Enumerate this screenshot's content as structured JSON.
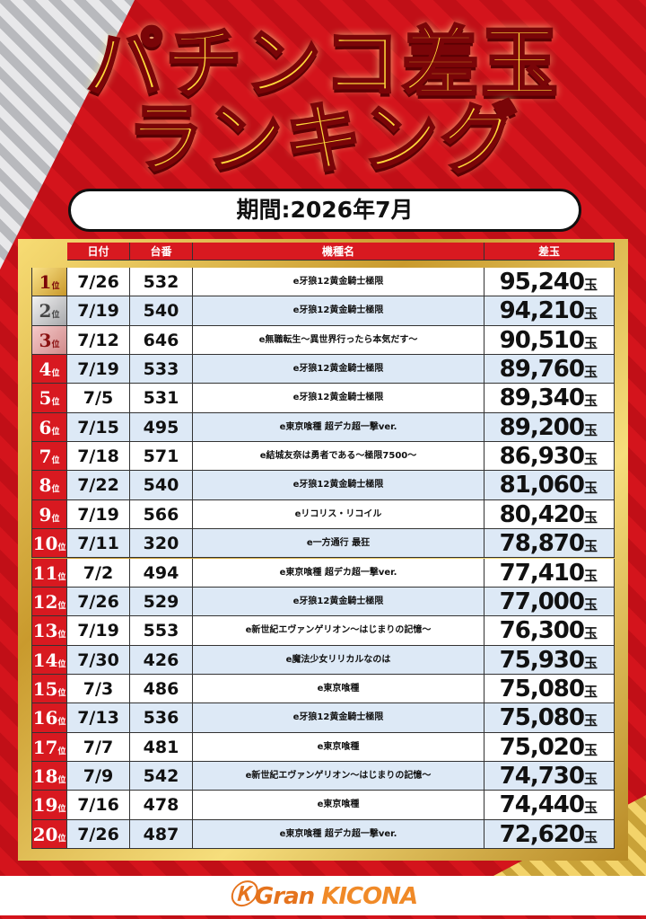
{
  "header": {
    "title_lines": [
      "パチンコ差玉",
      "ランキング"
    ],
    "period": "期間:2026年7月"
  },
  "table": {
    "headers": [
      "日付",
      "台番",
      "機種名",
      "差玉"
    ],
    "rows": [
      [
        "1",
        "位",
        "7/26",
        "532",
        "e牙狼12黄金騎士極限",
        "95,240",
        "玉"
      ],
      [
        "2",
        "位",
        "7/19",
        "540",
        "e牙狼12黄金騎士極限",
        "94,210",
        "玉"
      ],
      [
        "3",
        "位",
        "7/12",
        "646",
        "e無職転生～異世界行ったら本気だす～",
        "90,510",
        "玉"
      ],
      [
        "4",
        "位",
        "7/19",
        "533",
        "e牙狼12黄金騎士極限",
        "89,760",
        "玉"
      ],
      [
        "5",
        "位",
        "7/5",
        "531",
        "e牙狼12黄金騎士極限",
        "89,340",
        "玉"
      ],
      [
        "6",
        "位",
        "7/15",
        "495",
        "e東京喰種 超デカ超一撃ver.",
        "89,200",
        "玉"
      ],
      [
        "7",
        "位",
        "7/18",
        "571",
        "e結城友奈は勇者である～極限7500～",
        "86,930",
        "玉"
      ],
      [
        "8",
        "位",
        "7/22",
        "540",
        "e牙狼12黄金騎士極限",
        "81,060",
        "玉"
      ],
      [
        "9",
        "位",
        "7/19",
        "566",
        "eリコリス・リコイル",
        "80,420",
        "玉"
      ],
      [
        "10",
        "位",
        "7/11",
        "320",
        "e一方通行 最狂",
        "78,870",
        "玉"
      ],
      [
        "11",
        "位",
        "7/2",
        "494",
        "e東京喰種 超デカ超一撃ver.",
        "77,410",
        "玉"
      ],
      [
        "12",
        "位",
        "7/26",
        "529",
        "e牙狼12黄金騎士極限",
        "77,000",
        "玉"
      ],
      [
        "13",
        "位",
        "7/19",
        "553",
        "e新世紀エヴァンゲリオン～はじまりの記憶～",
        "76,300",
        "玉"
      ],
      [
        "14",
        "位",
        "7/30",
        "426",
        "e魔法少女リリカルなのは",
        "75,930",
        "玉"
      ],
      [
        "15",
        "位",
        "7/3",
        "486",
        "e東京喰種",
        "75,080",
        "玉"
      ],
      [
        "16",
        "位",
        "7/13",
        "536",
        "e牙狼12黄金騎士極限",
        "75,080",
        "玉"
      ],
      [
        "17",
        "位",
        "7/7",
        "481",
        "e東京喰種",
        "75,020",
        "玉"
      ],
      [
        "18",
        "位",
        "7/9",
        "542",
        "e新世紀エヴァンゲリオン～はじまりの記憶～",
        "74,730",
        "玉"
      ],
      [
        "19",
        "位",
        "7/16",
        "478",
        "e東京喰種",
        "74,440",
        "玉"
      ],
      [
        "20",
        "位",
        "7/26",
        "487",
        "e東京喰種 超デカ超一撃ver.",
        "72,620",
        "玉"
      ]
    ]
  },
  "footer": {
    "brand_prefix": "Gran",
    "brand_name": "KICONA"
  }
}
